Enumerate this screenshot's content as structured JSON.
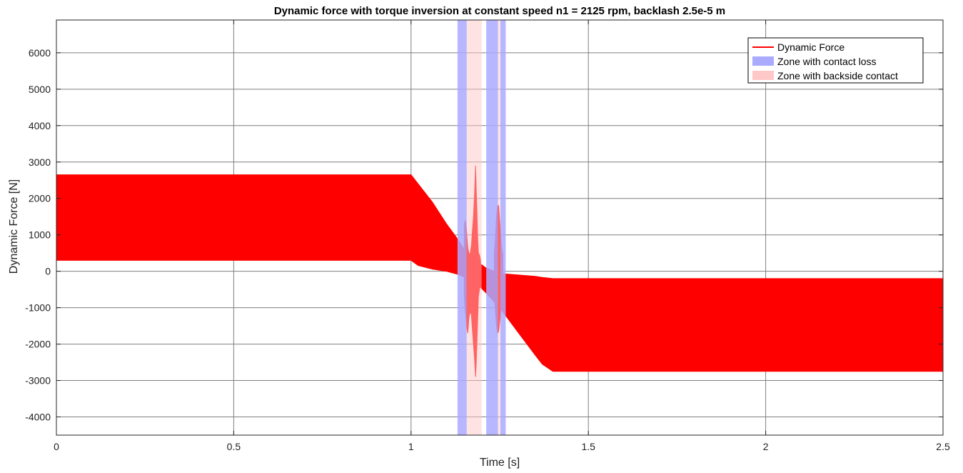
{
  "chart_data": {
    "type": "area",
    "title": "Dynamic force with torque inversion at constant speed n1 = 2125 rpm, backlash 2.5e-5 m",
    "xlabel": "Time [s]",
    "ylabel": "Dynamic Force [N]",
    "xlim": [
      0,
      2.5
    ],
    "ylim": [
      -4500,
      6900
    ],
    "x_ticks": [
      0,
      0.5,
      1,
      1.5,
      2,
      2.5
    ],
    "x_tick_labels": [
      "0",
      "0.5",
      "1",
      "1.5",
      "2",
      "2.5"
    ],
    "y_ticks": [
      -4000,
      -3000,
      -2000,
      -1000,
      0,
      1000,
      2000,
      3000,
      4000,
      5000,
      6000
    ],
    "y_tick_labels": [
      "-4000",
      "-3000",
      "-2000",
      "-1000",
      "0",
      "1000",
      "2000",
      "3000",
      "4000",
      "5000",
      "6000"
    ],
    "grid": true,
    "legend_position": "top-right",
    "series": [
      {
        "name": "Dynamic Force",
        "color": "#ff0000",
        "kind": "envelope",
        "x": [
          0,
          1.0,
          1.02,
          1.06,
          1.1,
          1.13,
          1.15,
          1.17,
          1.19,
          1.21,
          1.25,
          1.3,
          1.35,
          1.37,
          1.4,
          2.5
        ],
        "upper": [
          2650,
          2650,
          2400,
          1900,
          1300,
          900,
          600,
          400,
          250,
          100,
          -60,
          -100,
          -140,
          -170,
          -200,
          -200
        ],
        "lower": [
          300,
          300,
          160,
          60,
          0,
          -80,
          -160,
          -250,
          -380,
          -580,
          -1000,
          -1650,
          -2300,
          -2550,
          -2750,
          -2750
        ]
      }
    ],
    "transient_bursts": [
      {
        "x": [
          1.15,
          1.152,
          1.155,
          1.158,
          1.16,
          1.163,
          1.166,
          1.17,
          1.173,
          1.176,
          1.179,
          1.182,
          1.184,
          1.186,
          1.188,
          1.19,
          1.193,
          1.196
        ],
        "upper": [
          1200,
          1400,
          1300,
          900,
          650,
          500,
          450,
          700,
          1100,
          1500,
          2100,
          2900,
          2200,
          1600,
          900,
          500,
          450,
          300
        ],
        "lower": [
          -600,
          -1000,
          -1300,
          -1600,
          -1700,
          -1300,
          -1100,
          -1200,
          -1600,
          -2000,
          -2400,
          -2900,
          -2500,
          -1900,
          -1300,
          -700,
          -500,
          -300
        ]
      },
      {
        "x": [
          1.235,
          1.238,
          1.241,
          1.244,
          1.247,
          1.25,
          1.253,
          1.256,
          1.259
        ],
        "upper": [
          500,
          900,
          1500,
          1800,
          1800,
          1400,
          900,
          600,
          450
        ],
        "lower": [
          -600,
          -1100,
          -1500,
          -1700,
          -1650,
          -1400,
          -1100,
          -900,
          -750
        ]
      }
    ],
    "zones": [
      {
        "name": "Zone with contact loss",
        "type": "contact_loss",
        "x_start": 1.131,
        "x_end": 1.157,
        "color": "#aaaaff"
      },
      {
        "name": "Zone with backside contact",
        "type": "backside_contact",
        "x_start": 1.157,
        "x_end": 1.199,
        "color": "#ffc8c8"
      },
      {
        "name": "Zone with contact loss",
        "type": "contact_loss",
        "x_start": 1.212,
        "x_end": 1.245,
        "color": "#aaaaff"
      },
      {
        "name": "Zone with backside contact",
        "type": "backside_contact",
        "x_start": 1.245,
        "x_end": 1.252,
        "color": "#ffc8c8"
      },
      {
        "name": "Zone with contact loss",
        "type": "contact_loss",
        "x_start": 1.252,
        "x_end": 1.267,
        "color": "#aaaaff"
      }
    ],
    "legend": [
      {
        "label": "Dynamic Force",
        "kind": "line",
        "color": "#ff0000"
      },
      {
        "label": "Zone with contact loss",
        "kind": "patch",
        "color": "#aaaaff"
      },
      {
        "label": "Zone with backside contact",
        "kind": "patch",
        "color": "#ffc8c8"
      }
    ]
  }
}
